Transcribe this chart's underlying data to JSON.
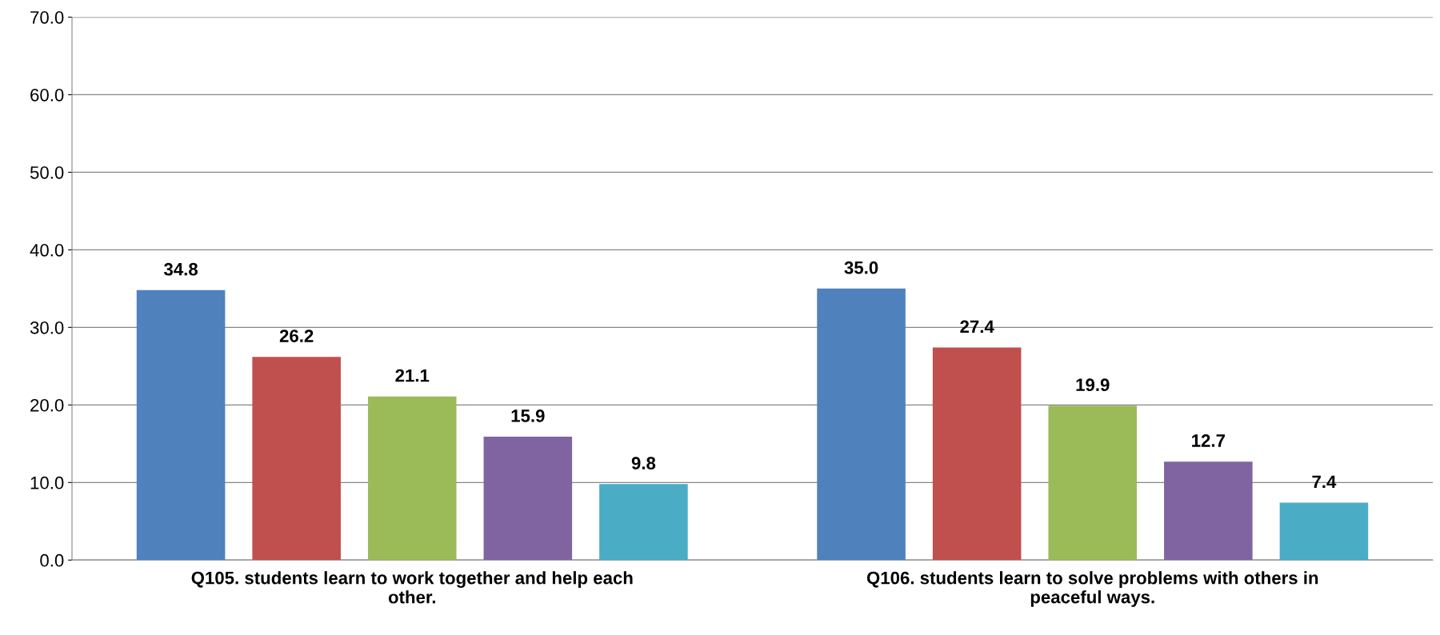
{
  "chart_data": {
    "type": "bar",
    "categories": [
      "Q105. students learn to work together and help each other.",
      "Q106. students learn to solve problems with others in peaceful ways."
    ],
    "series": [
      {
        "color": "#4f81bd",
        "values": [
          34.8,
          35.0
        ],
        "value_labels": [
          "34.8",
          "35.0"
        ]
      },
      {
        "color": "#c0504d",
        "values": [
          26.2,
          27.4
        ],
        "value_labels": [
          "26.2",
          "27.4"
        ]
      },
      {
        "color": "#9bbb59",
        "values": [
          21.1,
          19.9
        ],
        "value_labels": [
          "21.1",
          "19.9"
        ]
      },
      {
        "color": "#8064a2",
        "values": [
          15.9,
          12.7
        ],
        "value_labels": [
          "15.9",
          "12.7"
        ]
      },
      {
        "color": "#4bacc6",
        "values": [
          9.8,
          7.4
        ],
        "value_labels": [
          "9.8",
          "7.4"
        ]
      }
    ],
    "ylim": [
      0,
      70
    ],
    "yticks": [
      {
        "value": 0,
        "label": "0.0"
      },
      {
        "value": 10,
        "label": "10.0"
      },
      {
        "value": 20,
        "label": "20.0"
      },
      {
        "value": 30,
        "label": "30.0"
      },
      {
        "value": 40,
        "label": "40.0"
      },
      {
        "value": 50,
        "label": "50.0"
      },
      {
        "value": 60,
        "label": "60.0"
      },
      {
        "value": 70,
        "label": "70.0"
      }
    ],
    "grid": "y"
  }
}
